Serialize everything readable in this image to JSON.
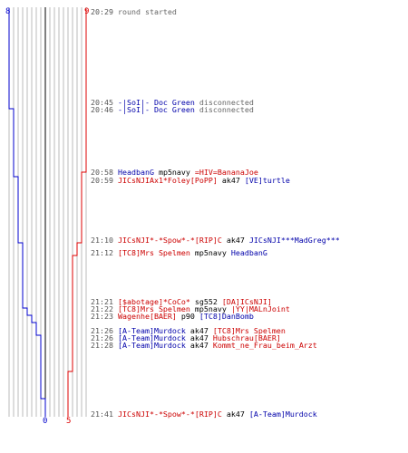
{
  "scores": {
    "blue_start": "8",
    "red_start": "9",
    "blue_end": "0",
    "red_end": "5"
  },
  "colors": {
    "blue_team": "#0000cc",
    "red_team": "#dd0000",
    "timeline_grid": "#bbbbbb",
    "center_line": "#000000",
    "timestamp": "#555555",
    "system_text": "#666666"
  },
  "events": [
    {
      "time": "20:29",
      "parts": [
        {
          "text": "round started",
          "c": "gray"
        }
      ]
    },
    {
      "time": "20:45",
      "parts": [
        {
          "text": "-|SoI|- Doc Green",
          "c": "blue"
        },
        {
          "text": " disconnected",
          "c": "gray"
        }
      ]
    },
    {
      "time": "20:46",
      "parts": [
        {
          "text": "-|SoI|- Doc Green",
          "c": "blue"
        },
        {
          "text": " disconnected",
          "c": "gray"
        }
      ]
    },
    {
      "time": "20:58",
      "parts": [
        {
          "text": "HeadbanG",
          "c": "blue"
        },
        {
          "text": " mp5navy ",
          "c": "black"
        },
        {
          "text": "=HIV=BananaJoe",
          "c": "red"
        }
      ]
    },
    {
      "time": "20:59",
      "parts": [
        {
          "text": "JICsNJIAx1*Foley[PoPP]",
          "c": "red"
        },
        {
          "text": " ak47 ",
          "c": "black"
        },
        {
          "text": "[VE]turtle",
          "c": "blue"
        }
      ]
    },
    {
      "time": "21:10",
      "parts": [
        {
          "text": "JICsNJI*-*Spow*-*[RIP]C",
          "c": "red"
        },
        {
          "text": " ak47 ",
          "c": "black"
        },
        {
          "text": "JICsNJI***MadGreg***",
          "c": "blue"
        }
      ]
    },
    {
      "time": "21:12",
      "parts": [
        {
          "text": "[TC8]Mrs Spelmen",
          "c": "red"
        },
        {
          "text": " mp5navy ",
          "c": "black"
        },
        {
          "text": "HeadbanG",
          "c": "blue"
        }
      ]
    },
    {
      "time": "21:21",
      "parts": [
        {
          "text": "[$abotage]*CoCo*",
          "c": "red"
        },
        {
          "text": " sg552 ",
          "c": "black"
        },
        {
          "text": "[DA]ICsNJI]",
          "c": "red"
        }
      ]
    },
    {
      "time": "21:22",
      "parts": [
        {
          "text": "[TC8]Mrs Spelmen",
          "c": "red"
        },
        {
          "text": " mp5navy ",
          "c": "black"
        },
        {
          "text": "|YY|MALnJoint",
          "c": "red"
        }
      ]
    },
    {
      "time": "21:23",
      "parts": [
        {
          "text": "Wagenhe[BAER]",
          "c": "red"
        },
        {
          "text": " p90 ",
          "c": "black"
        },
        {
          "text": "[TC8]DanBomb",
          "c": "blue"
        }
      ]
    },
    {
      "time": "21:26",
      "parts": [
        {
          "text": "[A-Team]Murdock",
          "c": "blue"
        },
        {
          "text": " ak47 ",
          "c": "black"
        },
        {
          "text": "[TC8]Mrs Spelmen",
          "c": "red"
        }
      ]
    },
    {
      "time": "21:26",
      "parts": [
        {
          "text": "[A-Team]Murdock",
          "c": "blue"
        },
        {
          "text": " ak47 ",
          "c": "black"
        },
        {
          "text": "Hubschrau[BAER]",
          "c": "red"
        }
      ]
    },
    {
      "time": "21:28",
      "parts": [
        {
          "text": "[A-Team]Murdock",
          "c": "blue"
        },
        {
          "text": " ak47 ",
          "c": "black"
        },
        {
          "text": "Kommt_ne_Frau_beim_Arzt",
          "c": "red"
        }
      ]
    },
    {
      "time": "21:41",
      "parts": [
        {
          "text": "JICsNJI*-*Spow*-*[RIP]C",
          "c": "red"
        },
        {
          "text": " ak47 ",
          "c": "black"
        },
        {
          "text": "[A-Team]Murdock",
          "c": "blue"
        }
      ]
    }
  ]
}
